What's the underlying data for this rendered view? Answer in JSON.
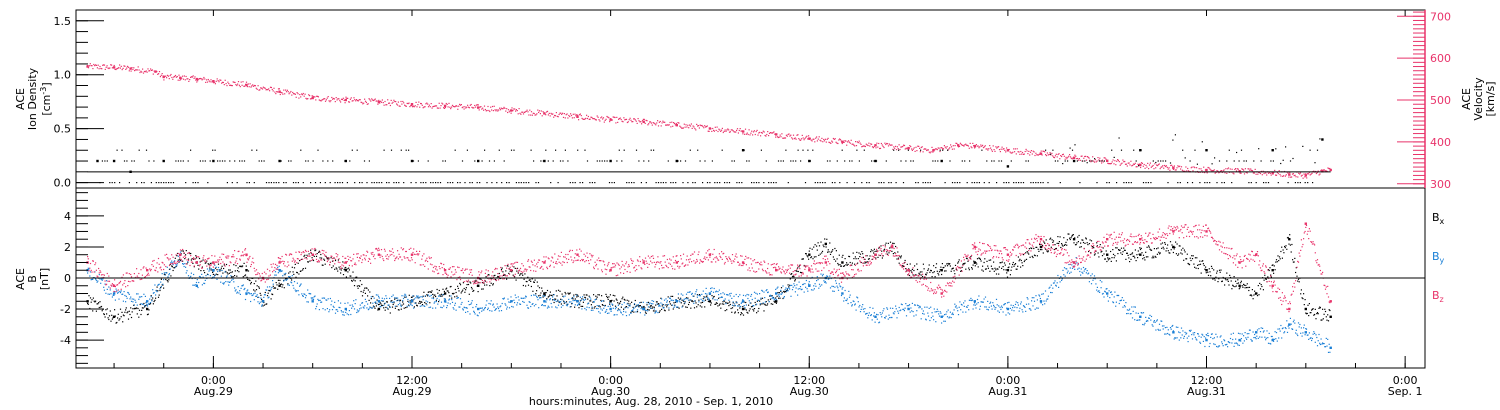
{
  "chart_data": [
    {
      "type": "scatter",
      "panel": "top",
      "left_axis": {
        "title_lines": [
          "ACE",
          "Ion Density"
        ],
        "unit": "[cm",
        "unit_exp": "-3",
        "ylim": [
          -0.05,
          1.6
        ],
        "ticks": [
          0.0,
          0.5,
          1.0,
          1.5
        ],
        "tick_labels": [
          "0.0",
          "0.5",
          "1.0",
          "1.5"
        ],
        "color": "#000000"
      },
      "right_axis": {
        "title_lines": [
          "ACE",
          "Velocity",
          "[km/s]"
        ],
        "ylim": [
          290,
          715
        ],
        "ticks": [
          300,
          400,
          500,
          600,
          700
        ],
        "tick_labels": [
          "300",
          "400",
          "500",
          "600",
          "700"
        ],
        "color": "#e8336a"
      },
      "reference_line_density": 0.1,
      "series": [
        {
          "color": "#e8336a",
          "axis": "right",
          "x_hours": [
            -7.6,
            -6,
            -5,
            -3.5,
            -3,
            -2,
            -1,
            0,
            2,
            4,
            6,
            8,
            10,
            12,
            14,
            16,
            18,
            20,
            22,
            24,
            26,
            28,
            30,
            32,
            34,
            36,
            38,
            40,
            42,
            43.5,
            45,
            46,
            48,
            50,
            52,
            54,
            56,
            58,
            60,
            62,
            64,
            65,
            66,
            67,
            67.5
          ],
          "values": [
            580,
            578,
            575,
            568,
            555,
            553,
            550,
            545,
            536,
            520,
            505,
            500,
            495,
            490,
            486,
            482,
            475,
            468,
            460,
            453,
            448,
            440,
            432,
            425,
            418,
            408,
            400,
            392,
            385,
            380,
            392,
            390,
            380,
            372,
            362,
            355,
            345,
            338,
            333,
            330,
            326,
            322,
            320,
            330,
            333
          ]
        },
        {
          "color": "#000000",
          "axis": "left",
          "x_hours": [
            -7,
            -6,
            -5,
            -3,
            0,
            4,
            8,
            12,
            16,
            20,
            24,
            28,
            32,
            36,
            40,
            44,
            48,
            52,
            56,
            60,
            64,
            67
          ],
          "values": [
            0.2,
            0.2,
            0.1,
            0.2,
            0.2,
            0.2,
            0.2,
            0.2,
            0.2,
            0.2,
            0.2,
            0.2,
            0.3,
            0.2,
            0.2,
            0.2,
            0.15,
            0.2,
            0.3,
            0.3,
            0.3,
            0.4
          ]
        }
      ]
    },
    {
      "type": "scatter",
      "panel": "bottom",
      "left_axis": {
        "title_lines": [
          "ACE",
          "B",
          "[nT]"
        ],
        "ylim": [
          -5.8,
          5.8
        ],
        "ticks": [
          -4,
          -2,
          0,
          2,
          4
        ],
        "tick_labels": [
          "-4",
          "-2",
          "0",
          "2",
          "4"
        ],
        "color": "#000000"
      },
      "reference_line": 0,
      "legend": [
        {
          "base": "B",
          "sub": "x",
          "color": "#000000"
        },
        {
          "base": "B",
          "sub": "y",
          "color": "#1a7fd6"
        },
        {
          "base": "B",
          "sub": "z",
          "color": "#e8336a"
        }
      ],
      "series": [
        {
          "name": "Bx",
          "color": "#000000",
          "x_hours": [
            -7.6,
            -6,
            -4,
            -2,
            -1,
            0,
            2,
            3,
            4,
            6,
            8,
            10,
            12,
            14,
            16,
            18,
            20,
            22,
            24,
            26,
            28,
            30,
            32,
            34,
            36,
            37,
            38,
            40,
            41,
            42,
            44,
            46,
            48,
            50,
            52,
            54,
            56,
            58,
            60,
            62,
            63,
            64,
            65,
            66,
            67.5
          ],
          "values": [
            -1.5,
            -2.5,
            -2,
            1.5,
            1,
            0.5,
            0.5,
            -1.5,
            -0.5,
            1.5,
            0.5,
            -2,
            -1.5,
            -1,
            -0.5,
            0.5,
            -1,
            -1.5,
            -1.5,
            -2,
            -1.5,
            -1.5,
            -2,
            -1.5,
            1.5,
            2.2,
            1,
            1.5,
            2,
            0.5,
            0.5,
            1,
            0.5,
            2,
            2.5,
            1.5,
            1.5,
            2,
            0.5,
            -0.5,
            -1,
            0.5,
            2.5,
            -2,
            -2.5
          ]
        },
        {
          "name": "By",
          "color": "#1a7fd6",
          "x_hours": [
            -7.6,
            -6,
            -4,
            -2,
            -1,
            0,
            2,
            3,
            4,
            6,
            8,
            10,
            12,
            14,
            16,
            18,
            20,
            22,
            24,
            26,
            28,
            30,
            32,
            34,
            36,
            37,
            38,
            40,
            42,
            44,
            46,
            48,
            50,
            52,
            54,
            56,
            58,
            60,
            62,
            63,
            64,
            65,
            66,
            67.5
          ],
          "values": [
            0.5,
            -1,
            -1.5,
            1.5,
            -0.5,
            0.5,
            -1,
            -1.5,
            0.5,
            -1.5,
            -2,
            -1.5,
            -1.5,
            -1.5,
            -2,
            -1.5,
            -1.5,
            -1.5,
            -2,
            -2,
            -1.5,
            -1,
            -1.5,
            -1,
            -0.5,
            0,
            -1,
            -2.5,
            -2,
            -2.5,
            -1.5,
            -2,
            -1.5,
            1,
            -1,
            -2.5,
            -3.5,
            -4,
            -4,
            -3.5,
            -4,
            -3,
            -3.5,
            -4.5
          ]
        },
        {
          "name": "Bz",
          "color": "#e8336a",
          "x_hours": [
            -7.6,
            -6,
            -4,
            -2,
            -1,
            0,
            2,
            3,
            4,
            6,
            8,
            10,
            12,
            14,
            16,
            18,
            20,
            22,
            24,
            26,
            28,
            30,
            32,
            34,
            36,
            37,
            38,
            40,
            41,
            42,
            44,
            46,
            48,
            50,
            52,
            54,
            56,
            58,
            60,
            62,
            63,
            64,
            65,
            66,
            67.5
          ],
          "values": [
            1,
            -0.5,
            0.5,
            1.5,
            1,
            1,
            1.5,
            0,
            1,
            1.5,
            1,
            1.5,
            1.5,
            0.5,
            0,
            0.5,
            1,
            1.5,
            0.5,
            1,
            1,
            1.5,
            1,
            0.5,
            0.5,
            1,
            0,
            1.5,
            2,
            0.5,
            -1,
            2,
            1.5,
            2.5,
            1,
            2.5,
            2.5,
            3,
            3,
            1,
            1.5,
            -0.5,
            -2,
            3.5,
            -1.5
          ]
        }
      ]
    }
  ],
  "time_axis": {
    "labels": [
      {
        "hours": 0,
        "time": "0:00",
        "date": "Aug.29"
      },
      {
        "hours": 12,
        "time": "12:00",
        "date": "Aug.29"
      },
      {
        "hours": 24,
        "time": "0:00",
        "date": "Aug.30"
      },
      {
        "hours": 36,
        "time": "12:00",
        "date": "Aug.30"
      },
      {
        "hours": 48,
        "time": "0:00",
        "date": "Aug.31"
      },
      {
        "hours": 60,
        "time": "12:00",
        "date": "Aug.31"
      },
      {
        "hours": 72,
        "time": "0:00",
        "date": "Sep. 1"
      }
    ],
    "xlim_hours": [
      -8.3,
      73.2
    ],
    "title": "hours:minutes, Aug. 28, 2010 - Sep.  1, 2010"
  }
}
